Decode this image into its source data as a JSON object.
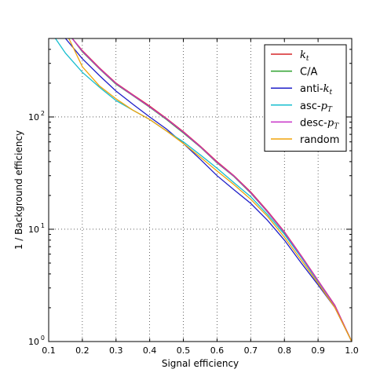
{
  "chart_data": {
    "type": "line",
    "xlabel": "Signal efficiency",
    "ylabel": "1 / Background efficiency",
    "xlim": [
      0.1,
      1.0
    ],
    "ylim": [
      1,
      500
    ],
    "yscale": "log",
    "grid": true,
    "legend_position": "top-right",
    "x_ticks": [
      "0.1",
      "0.2",
      "0.3",
      "0.4",
      "0.5",
      "0.6",
      "0.7",
      "0.8",
      "0.9",
      "1.0"
    ],
    "x_tick_values": [
      0.1,
      0.2,
      0.3,
      0.4,
      0.5,
      0.6,
      0.7,
      0.8,
      0.9,
      1.0
    ],
    "y_ticks": [
      {
        "base": "10",
        "exp": "0",
        "value": 1
      },
      {
        "base": "10",
        "exp": "1",
        "value": 10
      },
      {
        "base": "10",
        "exp": "2",
        "value": 100
      }
    ],
    "series": [
      {
        "name": "k_t",
        "legend": {
          "main": "k",
          "sub": "t",
          "prefix": ""
        },
        "color": "#d62728",
        "x": [
          0.17,
          0.2,
          0.25,
          0.3,
          0.35,
          0.4,
          0.45,
          0.5,
          0.55,
          0.6,
          0.65,
          0.7,
          0.75,
          0.8,
          0.85,
          0.9,
          0.95,
          1.0
        ],
        "y": [
          500,
          390,
          275,
          200,
          158,
          125,
          97,
          74,
          55,
          40,
          30,
          21.5,
          14.5,
          9.5,
          5.8,
          3.5,
          2.1,
          1.0
        ]
      },
      {
        "name": "C/A",
        "legend": {
          "main": "C/A",
          "sub": "",
          "prefix": ""
        },
        "color": "#2ca02c",
        "x": [
          0.17,
          0.2,
          0.25,
          0.3,
          0.35,
          0.4,
          0.45,
          0.5,
          0.55,
          0.6,
          0.65,
          0.7,
          0.75,
          0.8,
          0.85,
          0.9,
          0.95,
          1.0
        ],
        "y": [
          500,
          380,
          270,
          196,
          155,
          122,
          95,
          72,
          54,
          39,
          29.5,
          21,
          14.2,
          9.3,
          5.7,
          3.45,
          2.05,
          1.0
        ]
      },
      {
        "name": "anti-k_t",
        "legend": {
          "main": "anti-",
          "sub": "t",
          "prefix": "k"
        },
        "color": "#1f1fc8",
        "x": [
          0.15,
          0.2,
          0.25,
          0.3,
          0.35,
          0.4,
          0.45,
          0.5,
          0.55,
          0.6,
          0.65,
          0.7,
          0.75,
          0.8,
          0.85,
          0.9,
          0.95,
          1.0
        ],
        "y": [
          500,
          330,
          235,
          170,
          130,
          100,
          78,
          58,
          42,
          30,
          22.5,
          17,
          12,
          8.0,
          5.0,
          3.2,
          2.0,
          1.0
        ]
      },
      {
        "name": "asc-p_T",
        "legend": {
          "main": "asc-",
          "sub": "T",
          "prefix": "p"
        },
        "color": "#17becf",
        "x": [
          0.12,
          0.15,
          0.2,
          0.25,
          0.3,
          0.35,
          0.4,
          0.45,
          0.5,
          0.55,
          0.6,
          0.65,
          0.7,
          0.75,
          0.8,
          0.85,
          0.9,
          0.95,
          1.0
        ],
        "y": [
          500,
          370,
          250,
          185,
          140,
          115,
          95,
          75,
          60,
          46,
          35,
          26,
          19.5,
          13.5,
          9.0,
          5.6,
          3.4,
          2.05,
          1.0
        ]
      },
      {
        "name": "desc-p_T",
        "legend": {
          "main": "desc-",
          "sub": "T",
          "prefix": "p"
        },
        "color": "#c832c8",
        "x": [
          0.17,
          0.2,
          0.25,
          0.3,
          0.35,
          0.4,
          0.45,
          0.5,
          0.55,
          0.6,
          0.65,
          0.7,
          0.75,
          0.8,
          0.85,
          0.9,
          0.95,
          1.0
        ],
        "y": [
          500,
          385,
          272,
          198,
          156,
          123,
          96,
          73,
          54.5,
          39.5,
          29.8,
          21.2,
          14.3,
          9.4,
          5.75,
          3.48,
          2.08,
          1.0
        ]
      },
      {
        "name": "random",
        "legend": {
          "main": "random",
          "sub": "",
          "prefix": ""
        },
        "color": "#f0a30a",
        "x": [
          0.16,
          0.2,
          0.25,
          0.3,
          0.35,
          0.4,
          0.45,
          0.5,
          0.55,
          0.6,
          0.65,
          0.7,
          0.75,
          0.8,
          0.85,
          0.9,
          0.95,
          1.0
        ],
        "y": [
          500,
          280,
          190,
          145,
          115,
          95,
          75,
          58,
          44,
          33,
          25,
          18.5,
          13,
          8.5,
          5.3,
          3.3,
          2.0,
          1.0
        ]
      }
    ]
  }
}
